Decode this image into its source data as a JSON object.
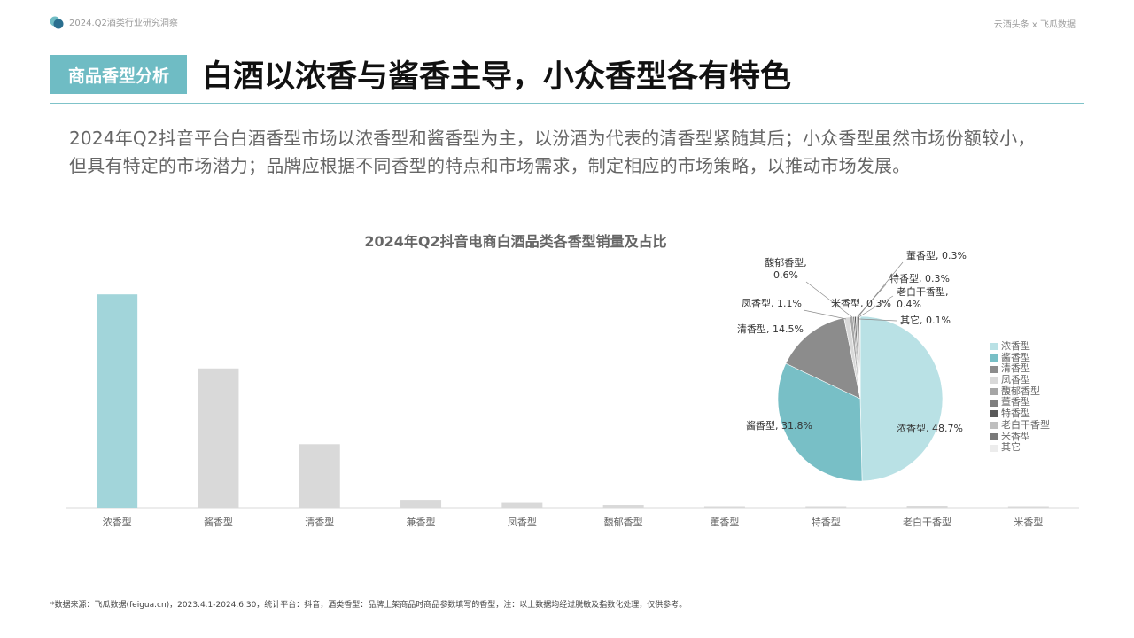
{
  "header": {
    "report_title": "2024.Q2酒类行业研究洞察",
    "source_right": "云酒头条 x 飞瓜数据"
  },
  "section_tag": "商品香型分析",
  "main_title": "白酒以浓香与酱香主导，小众香型各有特色",
  "description": {
    "line1": "2024年Q2抖音平台白酒香型市场以浓香型和酱香型为主，以汾酒为代表的清香型紧随其后；小众香型虽然市场份额较小，",
    "line2": "但具有特定的市场潜力；品牌应根据不同香型的特点和市场需求，制定相应的市场策略，以推动市场发展。"
  },
  "chart_title": "2024年Q2抖音电商白酒品类各香型销量及占比",
  "chart_data": [
    {
      "type": "bar",
      "categories": [
        "浓香型",
        "酱香型",
        "清香型",
        "兼香型",
        "凤香型",
        "馥郁香型",
        "董香型",
        "特香型",
        "老白干香型",
        "米香型"
      ],
      "values": [
        48.7,
        31.8,
        14.5,
        1.8,
        1.1,
        0.6,
        0.3,
        0.3,
        0.4,
        0.3
      ],
      "ylim": [
        0,
        50
      ],
      "grid": false,
      "colors": [
        "#a2d5da",
        "#d9d9d9",
        "#d9d9d9",
        "#d9d9d9",
        "#d9d9d9",
        "#d9d9d9",
        "#d9d9d9",
        "#d9d9d9",
        "#d9d9d9",
        "#d9d9d9"
      ]
    },
    {
      "type": "pie",
      "labels": [
        "浓香型",
        "酱香型",
        "清香型",
        "凤香型",
        "馥郁香型",
        "董香型",
        "特香型",
        "老白干香型",
        "米香型",
        "其它"
      ],
      "values": [
        48.7,
        31.8,
        14.5,
        1.1,
        0.6,
        0.3,
        0.3,
        0.4,
        0.3,
        0.1
      ],
      "data_labels": [
        "浓香型, 48.7%",
        "酱香型, 31.8%",
        "清香型, 14.5%",
        "凤香型, 1.1%",
        "馥郁香型, 0.6%",
        "董香型, 0.3%",
        "特香型, 0.3%",
        "老白干香型, 0.4%",
        "米香型, 0.3%",
        "其它, 0.1%"
      ],
      "colors": [
        "#b9e1e5",
        "#78bfc6",
        "#8c8c8c",
        "#d9d9d9",
        "#a6a6a6",
        "#7f7f7f",
        "#595959",
        "#bfbfbf",
        "#7a7a7a",
        "#ececec"
      ],
      "legend_position": "right"
    }
  ],
  "footnote": "*数据来源：飞瓜数据(feigua.cn)，2023.4.1-2024.6.30，统计平台：抖音，酒类香型：品牌上架商品时商品参数填写的香型，注：以上数据均经过脱敏及指数化处理，仅供参考。"
}
